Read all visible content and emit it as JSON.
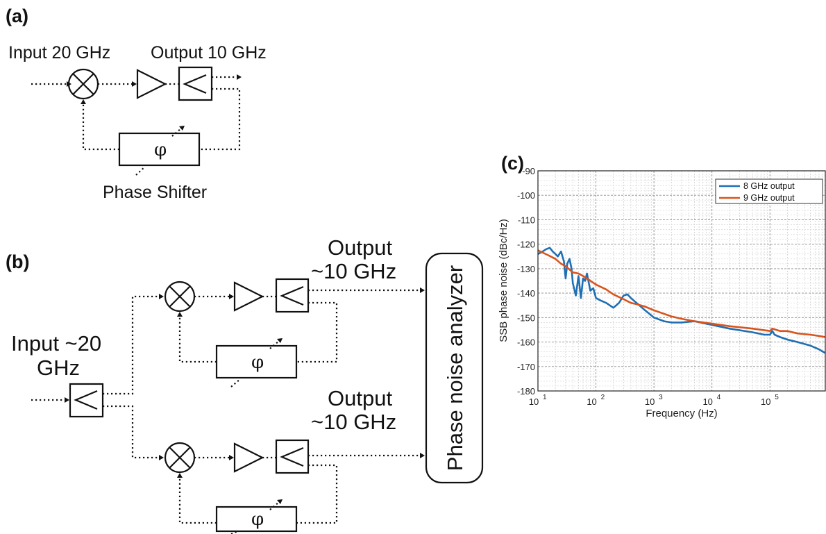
{
  "panel_a": {
    "tag": "(a)",
    "input_label": "Input 20 GHz",
    "output_label": "Output 10 GHz",
    "phase_symbol": "φ",
    "phase_shifter_label": "Phase Shifter"
  },
  "panel_b": {
    "tag": "(b)",
    "input_label_line1": "Input ~20",
    "input_label_line2": "GHz",
    "output_top_line1": "Output",
    "output_top_line2": "~10 GHz",
    "output_bottom_line1": "Output",
    "output_bottom_line2": "~10 GHz",
    "phase_symbol": "φ",
    "analyzer_label": "Phase noise analyzer"
  },
  "chart_data": {
    "type": "line",
    "panel_tag": "(c)",
    "xlabel": "Frequency (Hz)",
    "ylabel": "SSB phase noise (dBc/Hz)",
    "x_scale": "log",
    "xlim": [
      10,
      900000
    ],
    "ylim": [
      -180,
      -90
    ],
    "x_ticks": [
      10,
      100,
      1000,
      10000,
      100000
    ],
    "x_tick_labels": [
      {
        "base": "10",
        "exp": "1"
      },
      {
        "base": "10",
        "exp": "2"
      },
      {
        "base": "10",
        "exp": "3"
      },
      {
        "base": "10",
        "exp": "4"
      },
      {
        "base": "10",
        "exp": "5"
      }
    ],
    "y_ticks": [
      -180,
      -170,
      -160,
      -150,
      -140,
      -130,
      -120,
      -110,
      -100,
      -90
    ],
    "grid": true,
    "legend_position": "top-right",
    "series": [
      {
        "name": "8 GHz output",
        "color": "#1f6fb4",
        "x": [
          10,
          12,
          14,
          16,
          18,
          20,
          22,
          25,
          28,
          30,
          32,
          35,
          38,
          40,
          45,
          50,
          55,
          60,
          65,
          70,
          80,
          90,
          100,
          120,
          150,
          200,
          250,
          300,
          350,
          400,
          500,
          700,
          1000,
          1500,
          2000,
          3000,
          5000,
          10000,
          20000,
          50000,
          80000,
          100000,
          110000,
          120000,
          150000,
          200000,
          300000,
          500000,
          700000,
          900000
        ],
        "y": [
          -124,
          -123,
          -122,
          -121.5,
          -123,
          -124,
          -125,
          -123,
          -127,
          -134,
          -128,
          -126,
          -130,
          -136,
          -141,
          -133,
          -142,
          -134,
          -135,
          -132,
          -139,
          -138,
          -142,
          -143,
          -144,
          -146,
          -144,
          -141,
          -140.5,
          -142,
          -144,
          -147,
          -150,
          -151.5,
          -152,
          -152,
          -151.5,
          -153,
          -154.5,
          -156,
          -157,
          -157,
          -155.5,
          -157,
          -158,
          -159,
          -160,
          -161.5,
          -163,
          -164.5
        ]
      },
      {
        "name": "9 GHz output",
        "color": "#d9541d",
        "x": [
          10,
          15,
          20,
          25,
          30,
          40,
          50,
          60,
          70,
          100,
          150,
          200,
          300,
          400,
          500,
          700,
          1000,
          2000,
          3000,
          5000,
          10000,
          20000,
          50000,
          100000,
          110000,
          150000,
          200000,
          300000,
          500000,
          700000,
          900000
        ],
        "y": [
          -122.5,
          -124.5,
          -126,
          -128,
          -129,
          -131.5,
          -132,
          -133,
          -134,
          -136.5,
          -138.5,
          -140.5,
          -142.5,
          -144,
          -144.5,
          -145.5,
          -147,
          -149.5,
          -150.5,
          -151.5,
          -152.5,
          -153.5,
          -154.5,
          -155.5,
          -154.5,
          -155.5,
          -155.5,
          -156.5,
          -157,
          -157.5,
          -158
        ]
      }
    ]
  }
}
